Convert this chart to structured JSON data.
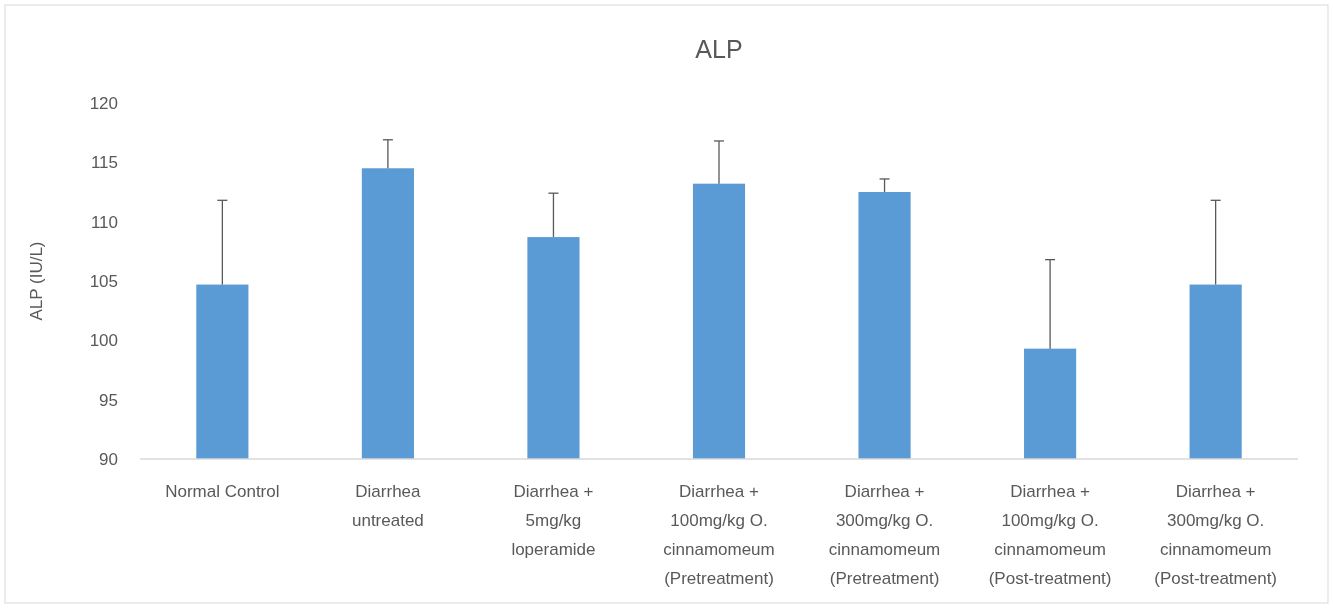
{
  "chart_data": {
    "type": "bar",
    "title": "ALP",
    "ylabel": "ALP (IU/L)",
    "categories": [
      "Normal Control",
      "Diarrhea untreated",
      "Diarrhea + 5mg/kg loperamide",
      "Diarrhea + 100mg/kg O. cinnamomeum (Pretreatment)",
      "Diarrhea + 300mg/kg O. cinnamomeum (Pretreatment)",
      "Diarrhea + 100mg/kg O. cinnamomeum (Post-treatment)",
      "Diarrhea + 300mg/kg O. cinnamomeum (Post-treatment)"
    ],
    "values": [
      104.7,
      114.5,
      108.7,
      113.2,
      112.5,
      99.3,
      104.7
    ],
    "errors": [
      [
        104.7,
        111.8
      ],
      [
        114.5,
        116.9
      ],
      [
        108.7,
        112.4
      ],
      [
        113.2,
        116.8
      ],
      [
        112.5,
        113.6
      ],
      [
        99.3,
        106.8
      ],
      [
        104.7,
        111.8
      ]
    ],
    "color": "#5b9bd5",
    "ylim": [
      90,
      120
    ],
    "yticks": [
      90,
      95,
      100,
      105,
      110,
      115,
      120
    ]
  }
}
